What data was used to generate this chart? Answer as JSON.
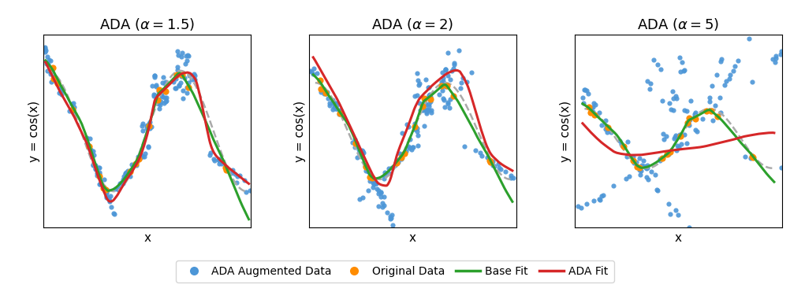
{
  "titles": [
    "ADA ($\\alpha = 1.5$)",
    "ADA ($\\alpha = 2$)",
    "ADA ($\\alpha = 5$)"
  ],
  "ylabel": "y = cos(x)",
  "xlabel": "x",
  "blue_color": "#4C96D7",
  "orange_color": "#FF8C00",
  "green_color": "#2CA02C",
  "red_color": "#D62728",
  "gray_color": "#AAAAAA",
  "n_orig": 20,
  "alphas": [
    1.5,
    2.0,
    5.0
  ],
  "legend_labels": [
    "ADA Augmented Data",
    "Original Data",
    "Base Fit",
    "ADA Fit"
  ],
  "figsize": [
    10.02,
    3.66
  ],
  "dpi": 100,
  "n_aug_per": 10,
  "n_clusters": 2
}
